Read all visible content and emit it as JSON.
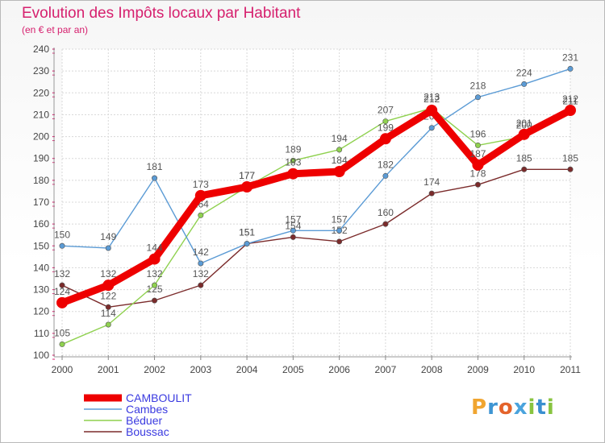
{
  "title": "Evolution des Impôts locaux par Habitant",
  "subtitle": "(en € et par an)",
  "logo": "Proxiti",
  "chart_data": {
    "type": "line",
    "x": [
      "2000",
      "2001",
      "2002",
      "2003",
      "2004",
      "2005",
      "2006",
      "2007",
      "2008",
      "2009",
      "2010",
      "2011"
    ],
    "ylim": [
      100,
      240
    ],
    "yticks": [
      100,
      110,
      120,
      130,
      140,
      150,
      160,
      170,
      180,
      190,
      200,
      210,
      220,
      230,
      240
    ],
    "grid": true,
    "legend_position": "bottom-left",
    "series": [
      {
        "name": "CAMBOULIT",
        "color": "#ee0000",
        "values": [
          124,
          132,
          144,
          173,
          177,
          183,
          184,
          199,
          212,
          187,
          201,
          212
        ]
      },
      {
        "name": "Cambes",
        "color": "#5b9bd5",
        "values": [
          150,
          149,
          181,
          142,
          151,
          157,
          157,
          182,
          204,
          218,
          224,
          231
        ]
      },
      {
        "name": "Béduer",
        "color": "#8fd14f",
        "values": [
          105,
          114,
          132,
          164,
          177,
          189,
          194,
          207,
          213,
          196,
          200,
          211
        ]
      },
      {
        "name": "Boussac",
        "color": "#7b2b2b",
        "values": [
          132,
          122,
          125,
          132,
          151,
          154,
          152,
          160,
          174,
          178,
          185,
          185
        ]
      }
    ]
  }
}
